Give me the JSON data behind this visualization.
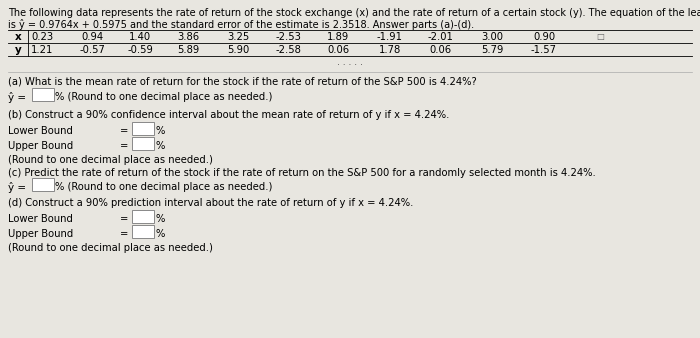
{
  "bg_color": "#e8e6e0",
  "text_color": "#000000",
  "title_line1": "The following data represents the rate of return of the stock exchange (x) and the rate of return of a certain stock (y). The equation of the least squares regression line",
  "title_line2": "is ŷ = 0.9764x + 0.5975 and the standard error of the estimate is 2.3518. Answer parts (a)-(d).",
  "table_x": [
    "0.23",
    "0.94",
    "1.40",
    "3.86",
    "3.25",
    "-2.53",
    "1.89",
    "-1.91",
    "-2.01",
    "3.00",
    "0.90"
  ],
  "table_y": [
    "1.21",
    "-0.57",
    "-0.59",
    "5.89",
    "5.90",
    "-2.58",
    "0.06",
    "1.78",
    "0.06",
    "5.79",
    "-1.57"
  ],
  "part_a_text": "(a) What is the mean rate of return for the stock if the rate of return of the S&P 500 is 4.24%?",
  "part_b_text": "(b) Construct a 90% confidence interval about the mean rate of return of y if x = 4.24%.",
  "part_b_note": "(Round to one decimal place as needed.)",
  "part_c_text": "(c) Predict the rate of return of the stock if the rate of return on the S&P 500 for a randomly selected month is 4.24%.",
  "part_d_text": "(d) Construct a 90% prediction interval about the rate of return of y if x = 4.24%.",
  "part_d_note": "(Round to one decimal place as needed.)",
  "round_note": "(Round to one decimal place as needed.)"
}
